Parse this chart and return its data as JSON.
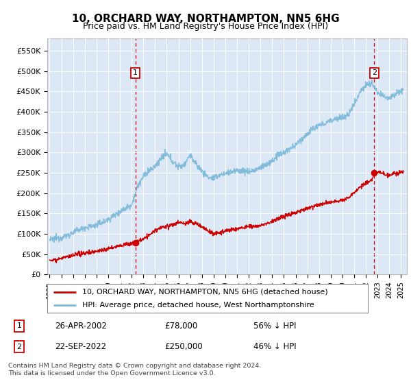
{
  "title": "10, ORCHARD WAY, NORTHAMPTON, NN5 6HG",
  "subtitle": "Price paid vs. HM Land Registry's House Price Index (HPI)",
  "plot_bg_color": "#dce8f5",
  "ylabel_ticks": [
    "£0",
    "£50K",
    "£100K",
    "£150K",
    "£200K",
    "£250K",
    "£300K",
    "£350K",
    "£400K",
    "£450K",
    "£500K",
    "£550K"
  ],
  "ytick_values": [
    0,
    50000,
    100000,
    150000,
    200000,
    250000,
    300000,
    350000,
    400000,
    450000,
    500000,
    550000
  ],
  "xlim_start": 1994.8,
  "xlim_end": 2025.5,
  "ylim": [
    0,
    580000
  ],
  "sale1_x": 2002.32,
  "sale1_y": 78000,
  "sale1_label": "1",
  "sale1_date": "26-APR-2002",
  "sale1_price": "£78,000",
  "sale1_pct": "56% ↓ HPI",
  "sale2_x": 2022.72,
  "sale2_y": 250000,
  "sale2_label": "2",
  "sale2_date": "22-SEP-2022",
  "sale2_price": "£250,000",
  "sale2_pct": "46% ↓ HPI",
  "hpi_color": "#7ab8d9",
  "price_color": "#cc0000",
  "dashed_color": "#cc0000",
  "legend_label1": "10, ORCHARD WAY, NORTHAMPTON, NN5 6HG (detached house)",
  "legend_label2": "HPI: Average price, detached house, West Northamptonshire",
  "footer": "Contains HM Land Registry data © Crown copyright and database right 2024.\nThis data is licensed under the Open Government Licence v3.0.",
  "hpi_years": [
    1995.0,
    1995.5,
    1996.0,
    1996.5,
    1997.0,
    1997.5,
    1998.0,
    1998.5,
    1999.0,
    1999.5,
    2000.0,
    2000.5,
    2001.0,
    2001.5,
    2002.0,
    2002.5,
    2003.0,
    2003.5,
    2004.0,
    2004.5,
    2005.0,
    2005.5,
    2006.0,
    2006.5,
    2007.0,
    2007.5,
    2008.0,
    2008.5,
    2009.0,
    2009.5,
    2010.0,
    2010.5,
    2011.0,
    2011.5,
    2012.0,
    2012.5,
    2013.0,
    2013.5,
    2014.0,
    2014.5,
    2015.0,
    2015.5,
    2016.0,
    2016.5,
    2017.0,
    2017.5,
    2018.0,
    2018.5,
    2019.0,
    2019.5,
    2020.0,
    2020.5,
    2021.0,
    2021.5,
    2022.0,
    2022.5,
    2022.72,
    2023.0,
    2023.5,
    2024.0,
    2024.5,
    2025.0
  ],
  "hpi_vals": [
    85000,
    88000,
    91000,
    96000,
    103000,
    110000,
    115000,
    118000,
    122000,
    128000,
    135000,
    145000,
    155000,
    163000,
    172000,
    215000,
    240000,
    255000,
    265000,
    285000,
    295000,
    278000,
    265000,
    270000,
    295000,
    270000,
    255000,
    240000,
    235000,
    245000,
    248000,
    252000,
    255000,
    255000,
    253000,
    256000,
    262000,
    270000,
    278000,
    292000,
    300000,
    308000,
    318000,
    332000,
    345000,
    358000,
    365000,
    372000,
    378000,
    385000,
    385000,
    392000,
    420000,
    450000,
    465000,
    470000,
    460000,
    445000,
    438000,
    435000,
    445000,
    452000
  ],
  "price_years": [
    1995.0,
    1995.5,
    1996.0,
    1996.5,
    1997.0,
    1997.5,
    1998.0,
    1998.5,
    1999.0,
    1999.5,
    2000.0,
    2000.5,
    2001.0,
    2001.5,
    2002.0,
    2002.32,
    2002.6,
    2003.0,
    2003.5,
    2004.0,
    2004.5,
    2005.0,
    2005.5,
    2006.0,
    2006.5,
    2007.0,
    2007.5,
    2008.0,
    2008.5,
    2009.0,
    2009.5,
    2010.0,
    2010.5,
    2011.0,
    2011.5,
    2012.0,
    2012.5,
    2013.0,
    2013.5,
    2014.0,
    2014.5,
    2015.0,
    2015.5,
    2016.0,
    2016.5,
    2017.0,
    2017.5,
    2018.0,
    2018.5,
    2019.0,
    2019.5,
    2020.0,
    2020.5,
    2021.0,
    2021.5,
    2022.0,
    2022.5,
    2022.72,
    2023.0,
    2023.5,
    2024.0,
    2024.5,
    2025.0
  ],
  "price_vals": [
    35000,
    37000,
    40000,
    43000,
    46000,
    50000,
    53000,
    55000,
    57000,
    60000,
    63000,
    67000,
    71000,
    74000,
    76000,
    78000,
    82000,
    88000,
    96000,
    108000,
    115000,
    118000,
    122000,
    128000,
    125000,
    130000,
    125000,
    118000,
    108000,
    100000,
    103000,
    107000,
    110000,
    112000,
    115000,
    118000,
    118000,
    120000,
    125000,
    130000,
    138000,
    143000,
    148000,
    153000,
    158000,
    163000,
    168000,
    172000,
    175000,
    178000,
    180000,
    183000,
    188000,
    200000,
    215000,
    225000,
    232000,
    250000,
    252000,
    248000,
    245000,
    248000,
    250000
  ]
}
